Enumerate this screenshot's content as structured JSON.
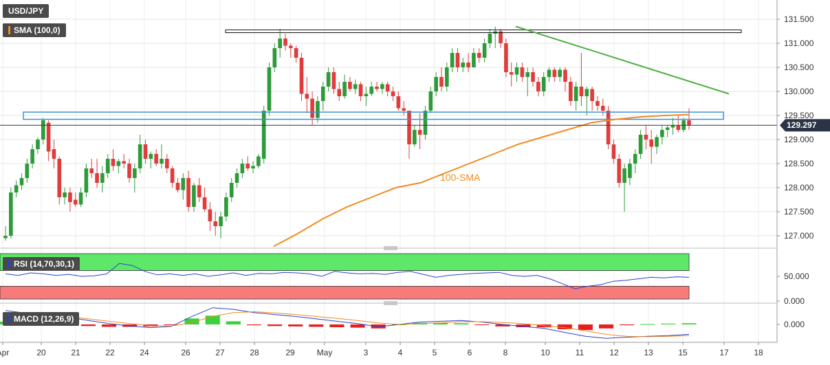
{
  "symbol": "USD/JPY",
  "price_panel": {
    "indicator_label": "SMA (100,0)",
    "sma_line_label": "100-SMA",
    "last_price": "129.297",
    "y_ticks": [
      "131.500",
      "131.000",
      "130.500",
      "130.000",
      "129.500",
      "129.000",
      "128.500",
      "128.000",
      "127.500",
      "127.000"
    ]
  },
  "rsi_panel": {
    "label": "RSI (14,70,30,1)",
    "y_ticks": [
      "50.000",
      "0.000"
    ]
  },
  "macd_panel": {
    "label": "MACD (12,26,9)",
    "y_ticks": [
      "0.000"
    ]
  },
  "x_axis": {
    "ticks": [
      "Apr",
      "20",
      "21",
      "22",
      "24",
      "26",
      "27",
      "28",
      "29",
      "May",
      "3",
      "4",
      "5",
      "6",
      "8",
      "10",
      "11",
      "12",
      "13",
      "15",
      "17",
      "18"
    ]
  },
  "colors": {
    "bull": "#2e9b3a",
    "bear": "#e03c3c",
    "sma": "#f28a1e",
    "trendline": "#4cae3f",
    "zone": "#3a8fd8",
    "rsi_overbought": "#5ee86a",
    "rsi_oversold": "#f77b7b",
    "rsi_line": "#2b40cf",
    "macd_line": "#2b40cf",
    "signal_line": "#f28a1e"
  },
  "chart_data": [
    {
      "type": "candlestick",
      "title": "USD/JPY",
      "ylim": [
        126.8,
        131.9
      ],
      "overlays": {
        "sma_100": {
          "name": "100-SMA",
          "values": [
            126.78,
            127.05,
            127.35,
            127.6,
            127.8,
            128.0,
            128.1,
            128.3,
            128.5,
            128.7,
            128.9,
            129.05,
            129.2,
            129.35,
            129.42,
            129.47,
            129.5,
            129.52
          ]
        },
        "horizontal_resistance": 131.25,
        "support_zone": [
          129.42,
          129.57
        ],
        "descending_trendline": {
          "from": 131.35,
          "to": 129.95
        }
      },
      "last_value": 129.297
    },
    {
      "type": "line",
      "title": "RSI (14,70,30,1)",
      "ylim": [
        0,
        100
      ],
      "levels": [
        30,
        70
      ],
      "values": [
        55,
        52,
        57,
        55,
        52,
        54,
        50,
        51,
        55,
        76,
        72,
        60,
        53,
        55,
        52,
        55,
        50,
        53,
        57,
        52,
        56,
        55,
        58,
        57,
        55,
        50,
        60,
        57,
        55,
        56,
        54,
        58,
        60,
        54,
        48,
        52,
        54,
        56,
        57,
        58,
        52,
        50,
        52,
        45,
        35,
        25,
        30,
        33,
        40,
        42,
        45,
        48,
        47,
        49,
        48
      ]
    },
    {
      "type": "line",
      "title": "MACD (12,26,9)",
      "series": [
        {
          "values": [
            0.35,
            0.28,
            0.22,
            0.18,
            0.1,
            0.02,
            -0.04,
            -0.08,
            -0.05,
            0.2,
            0.42,
            0.38,
            0.3,
            0.25,
            0.2,
            0.14,
            0.08,
            0.02,
            -0.06,
            0.0,
            0.06,
            0.08,
            0.1,
            0.06,
            0.0,
            -0.05,
            -0.1,
            -0.2,
            -0.3,
            -0.35,
            -0.32,
            -0.3,
            -0.28,
            -0.25
          ]
        },
        {
          "values": [
            0.28,
            0.26,
            0.24,
            0.2,
            0.14,
            0.08,
            0.02,
            -0.03,
            -0.04,
            0.05,
            0.2,
            0.3,
            0.32,
            0.29,
            0.25,
            0.2,
            0.15,
            0.1,
            0.04,
            0.0,
            0.02,
            0.04,
            0.07,
            0.07,
            0.05,
            0.02,
            -0.03,
            -0.08,
            -0.16,
            -0.25,
            -0.3,
            -0.31,
            -0.3,
            -0.28
          ]
        }
      ],
      "histogram": [
        0.07,
        0.02,
        -0.02,
        -0.02,
        -0.04,
        -0.06,
        -0.06,
        -0.05,
        -0.01,
        0.15,
        0.22,
        0.08,
        -0.02,
        -0.04,
        -0.05,
        -0.06,
        -0.07,
        -0.08,
        -0.1,
        0.0,
        0.04,
        0.04,
        0.03,
        -0.01,
        -0.05,
        -0.07,
        -0.07,
        -0.12,
        -0.14,
        -0.1,
        -0.02,
        0.01,
        0.02,
        0.03
      ]
    }
  ]
}
